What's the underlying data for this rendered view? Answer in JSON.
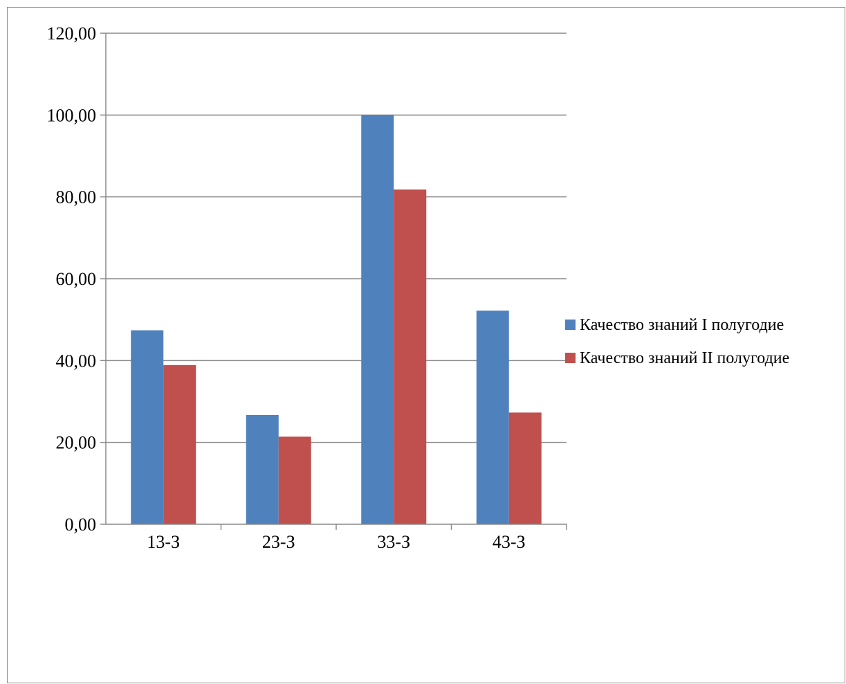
{
  "chart_data": {
    "type": "bar",
    "title": "",
    "xlabel": "",
    "ylabel": "",
    "categories": [
      "13-З",
      "23-З",
      "33-З",
      "43-З"
    ],
    "series": [
      {
        "name": "Качество знаний I полугодие",
        "color": "#4f81bd",
        "values": [
          47.4,
          26.7,
          100.0,
          52.2
        ]
      },
      {
        "name": "Качество знаний II полугодие",
        "color": "#c0504d",
        "values": [
          38.9,
          21.4,
          81.8,
          27.3
        ]
      }
    ],
    "ylim": [
      0,
      120
    ],
    "yticks": [
      0,
      20,
      40,
      60,
      80,
      100,
      120
    ],
    "ytick_labels": [
      "0,00",
      "20,00",
      "40,00",
      "60,00",
      "80,00",
      "100,00",
      "120,00"
    ],
    "grid": true,
    "legend_position": "right"
  }
}
